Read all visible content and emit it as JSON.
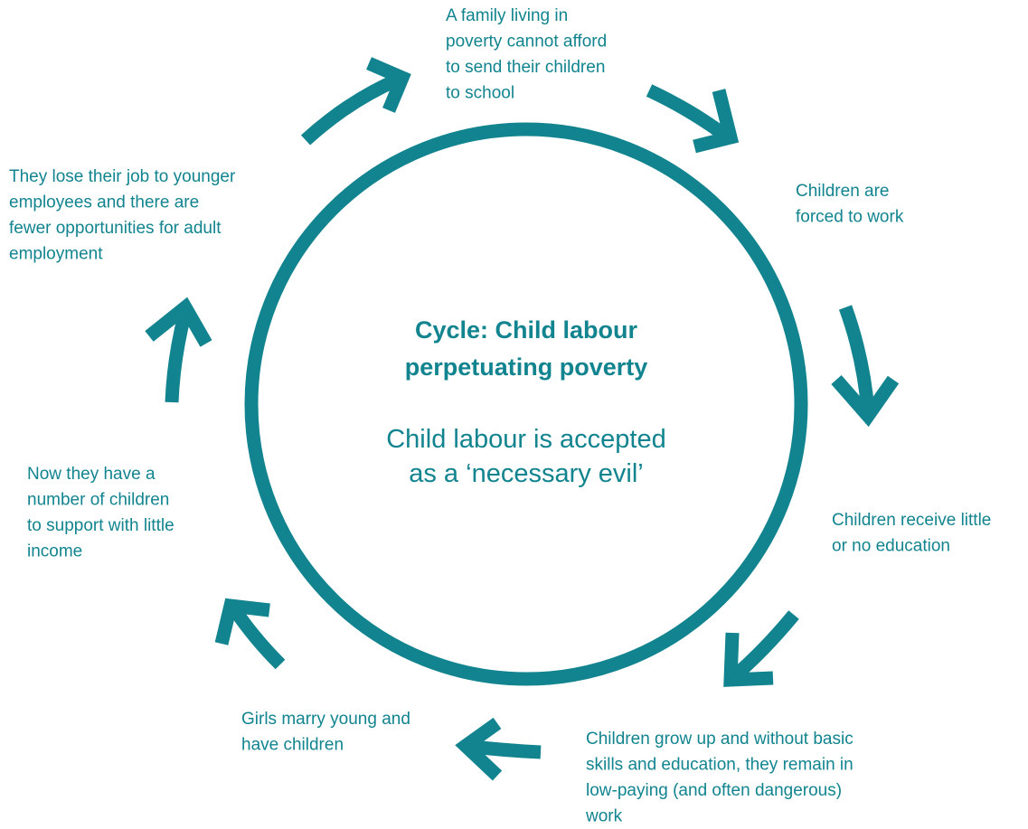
{
  "diagram": {
    "title_lines": [
      "Cycle: Child labour",
      "perpetuating poverty"
    ],
    "subtitle_lines": [
      "Child labour is accepted",
      "as a ‘necessary evil’"
    ],
    "nodes": [
      {
        "lines": [
          "A family living in",
          "poverty cannot afford",
          "to send their children",
          "to school"
        ]
      },
      {
        "lines": [
          "Children are",
          "forced to work"
        ]
      },
      {
        "lines": [
          "Children receive little",
          "or no education"
        ]
      },
      {
        "lines": [
          "Children grow up and without basic",
          "skills and education, they remain in",
          "low-paying (and often dangerous)",
          "work"
        ]
      },
      {
        "lines": [
          "Girls marry young and",
          "have children"
        ]
      },
      {
        "lines": [
          "Now they have a",
          "number of children",
          "to support with little",
          "income"
        ]
      },
      {
        "lines": [
          "They lose their job to younger",
          "employees and there are",
          "fewer opportunities for adult",
          "employment"
        ]
      }
    ]
  }
}
